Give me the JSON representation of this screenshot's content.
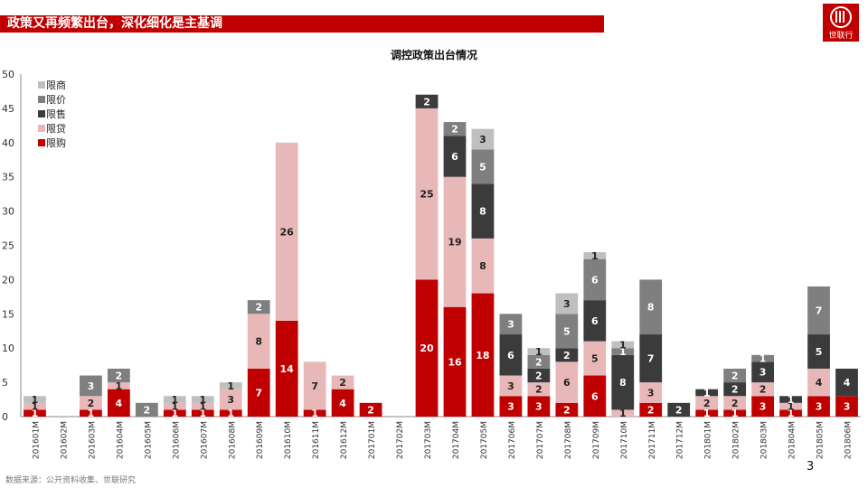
{
  "header": {
    "title": "政策又再频繁出台，深化细化是主基调",
    "logo_text": "世联行"
  },
  "footer": {
    "source": "数据来源：公开资料收集、世联研究",
    "page_number": "3"
  },
  "colors": {
    "title_bar": "#c00000",
    "限购": "#c00000",
    "限贷": "#e8b8b8",
    "限售": "#3b3b3b",
    "限价": "#7f7f7f",
    "限商": "#bfbfbf"
  },
  "chart_data": {
    "type": "bar",
    "stacked": true,
    "title": "调控政策出台情况",
    "xlabel": "",
    "ylabel": "",
    "ylim": [
      0,
      50
    ],
    "yticks": [
      0,
      5,
      10,
      15,
      20,
      25,
      30,
      35,
      40,
      45,
      50
    ],
    "grid": false,
    "legend_position": "top-left",
    "categories": [
      "201601M",
      "201602M",
      "201603M",
      "201604M",
      "201605M",
      "201606M",
      "201607M",
      "201608M",
      "201609M",
      "201610M",
      "201611M",
      "201612M",
      "201701M",
      "201702M",
      "201703M",
      "201704M",
      "201705M",
      "201706M",
      "201707M",
      "201708M",
      "201709M",
      "201710M",
      "201711M",
      "201712M",
      "201801M",
      "201802M",
      "201803M",
      "201804M",
      "201805M",
      "201806M"
    ],
    "series": [
      {
        "name": "限购",
        "values": [
          1,
          0,
          1,
          4,
          0,
          1,
          1,
          1,
          7,
          14,
          1,
          4,
          2,
          0,
          20,
          16,
          18,
          3,
          3,
          2,
          6,
          0,
          2,
          0,
          1,
          1,
          3,
          1,
          3,
          3
        ]
      },
      {
        "name": "限贷",
        "values": [
          1,
          0,
          2,
          1,
          0,
          1,
          1,
          3,
          8,
          26,
          7,
          2,
          0,
          0,
          25,
          19,
          8,
          3,
          2,
          6,
          5,
          1,
          3,
          0,
          2,
          2,
          2,
          1,
          4,
          0
        ]
      },
      {
        "name": "限售",
        "values": [
          0,
          0,
          0,
          0,
          0,
          0,
          0,
          0,
          0,
          0,
          0,
          0,
          0,
          0,
          2,
          6,
          8,
          6,
          2,
          2,
          6,
          8,
          7,
          2,
          1,
          2,
          3,
          1,
          5,
          4
        ]
      },
      {
        "name": "限价",
        "values": [
          0,
          0,
          3,
          2,
          2,
          0,
          0,
          0,
          2,
          0,
          0,
          0,
          0,
          0,
          0,
          2,
          5,
          3,
          2,
          5,
          6,
          1,
          8,
          0,
          0,
          2,
          1,
          0,
          7,
          0
        ]
      },
      {
        "name": "限商",
        "values": [
          1,
          0,
          0,
          0,
          0,
          1,
          1,
          1,
          0,
          0,
          0,
          0,
          0,
          0,
          0,
          0,
          3,
          0,
          1,
          3,
          1,
          1,
          0,
          0,
          0,
          0,
          0,
          0,
          0,
          0
        ]
      }
    ]
  }
}
